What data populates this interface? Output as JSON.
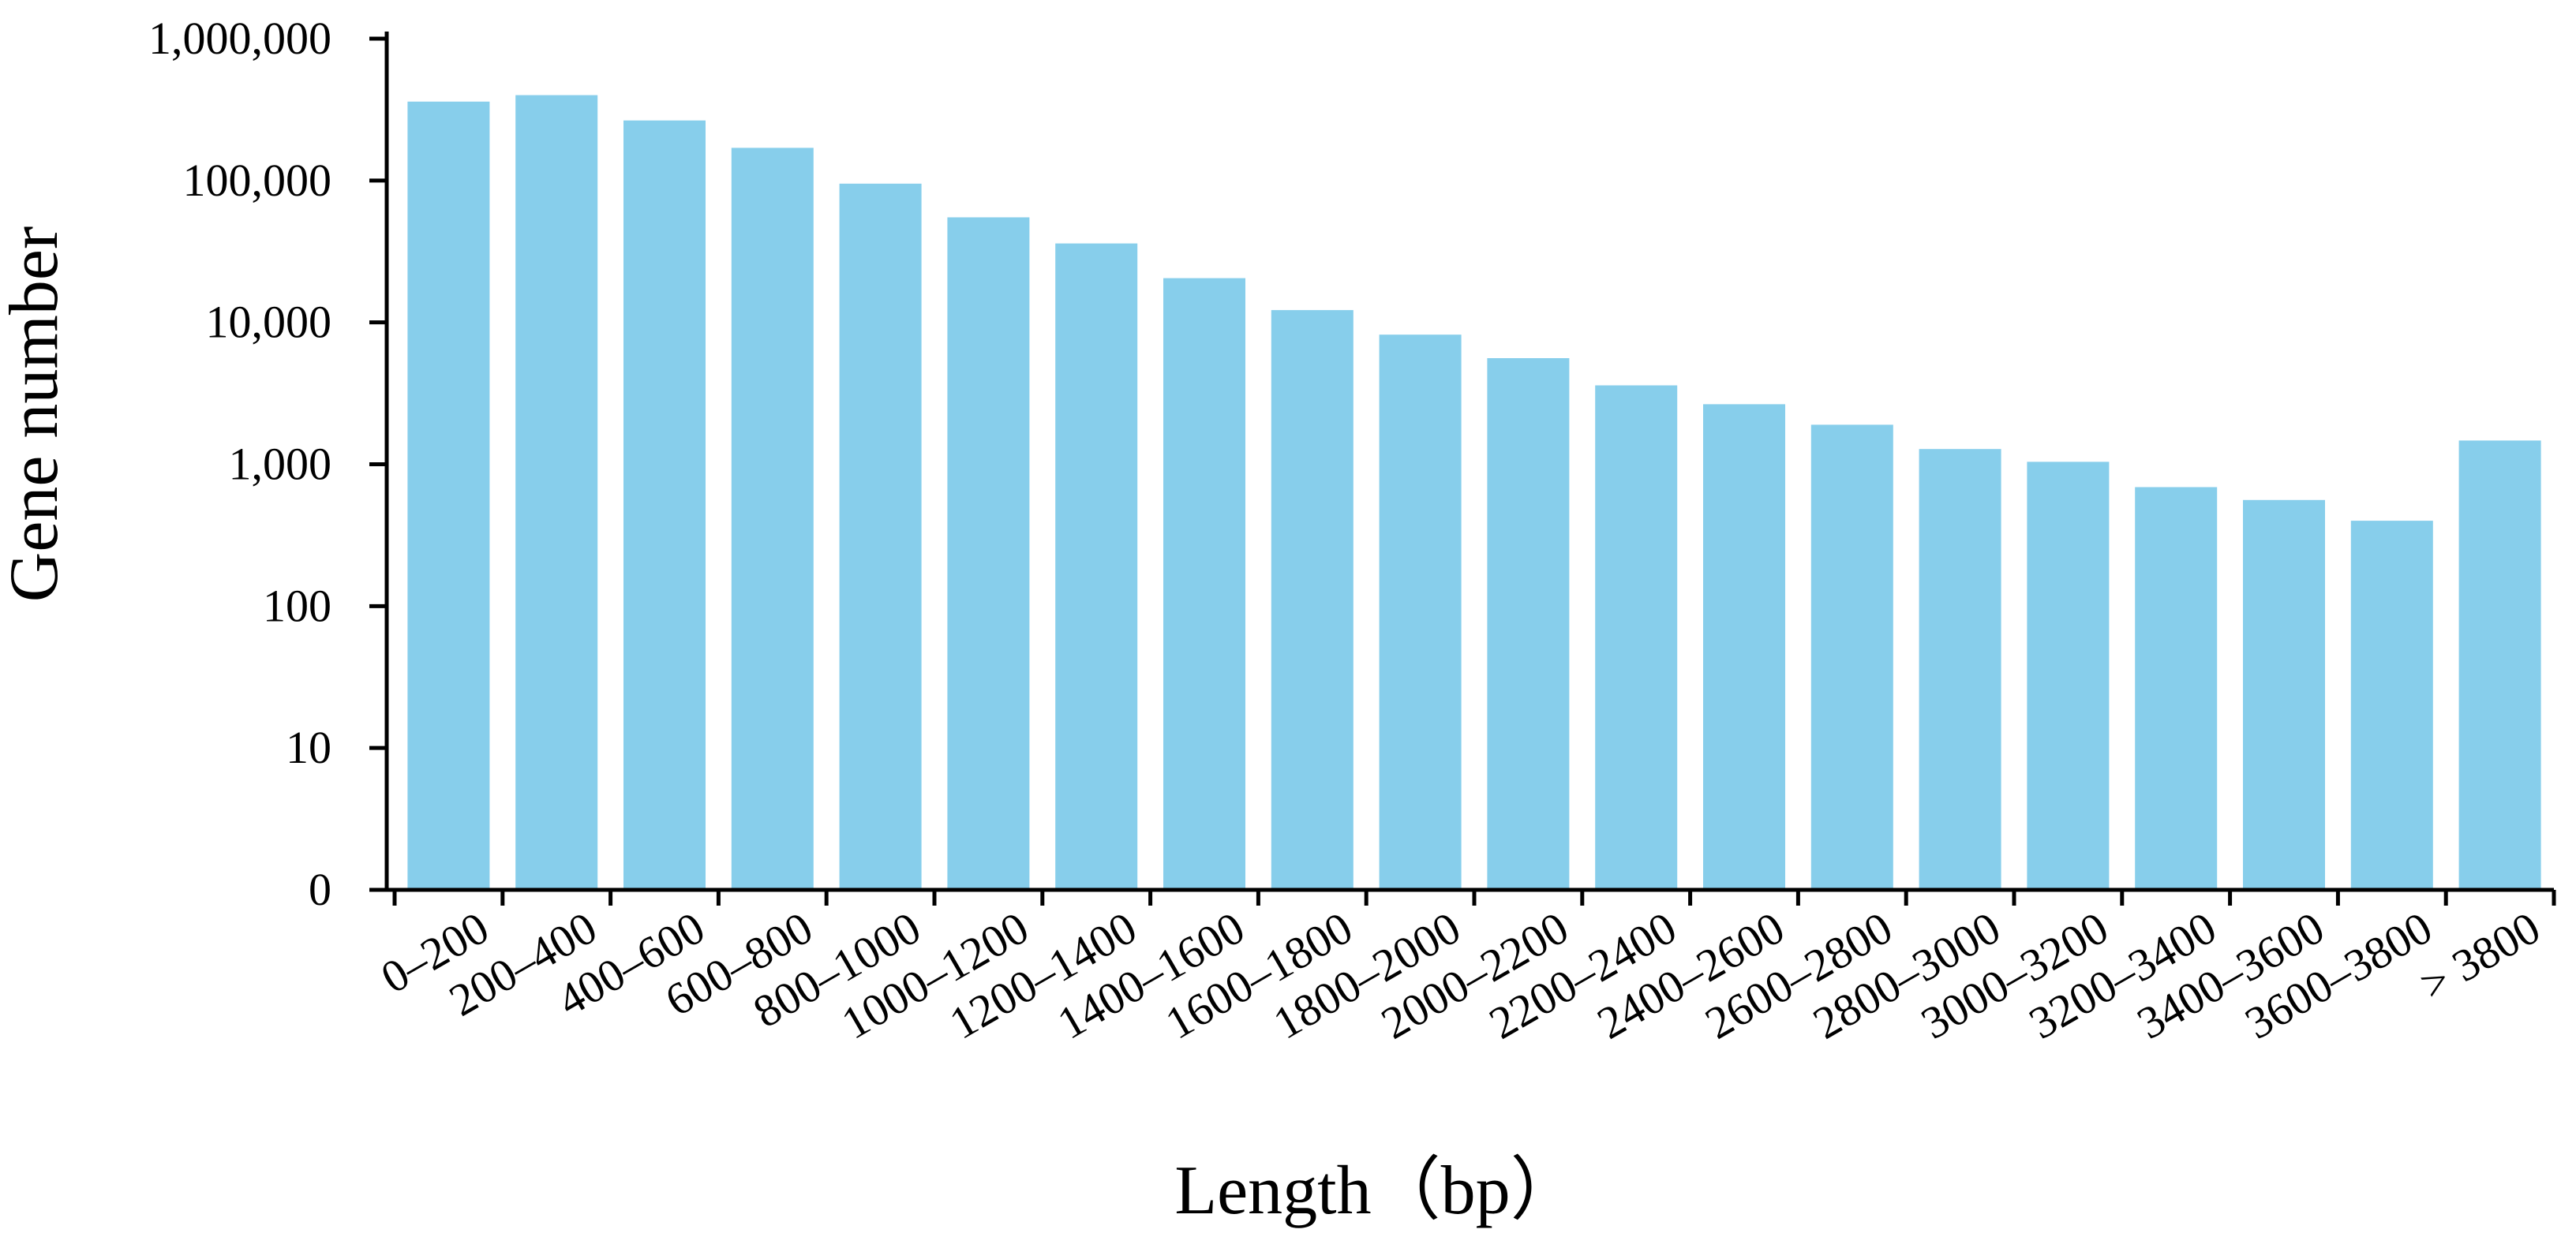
{
  "chart_data": {
    "type": "bar",
    "xlabel": "Length（bp）",
    "ylabel": "Gene number",
    "yscale": "log",
    "ylim": [
      1,
      1000000
    ],
    "grid": false,
    "legend": "none",
    "bar_color": "#87ceeb",
    "axis_color": "#000000",
    "y_ticks": [
      {
        "value": 1,
        "label": "0"
      },
      {
        "value": 10,
        "label": "10"
      },
      {
        "value": 100,
        "label": "100"
      },
      {
        "value": 1000,
        "label": "1,000"
      },
      {
        "value": 10000,
        "label": "10,000"
      },
      {
        "value": 100000,
        "label": "100,000"
      },
      {
        "value": 1000000,
        "label": "1,000,000"
      }
    ],
    "categories": [
      "0–200",
      "200–400",
      "400–600",
      "600–800",
      "800–1000",
      "1000–1200",
      "1200–1400",
      "1400–1600",
      "1600–1800",
      "1800–2000",
      "2000–2200",
      "2200–2400",
      "2400–2600",
      "2600–2800",
      "2800–3000",
      "3000–3200",
      "3200–3400",
      "3400–3600",
      "3600–3800",
      "> 3800"
    ],
    "values": [
      360000,
      400000,
      265000,
      170000,
      95000,
      55000,
      36000,
      20500,
      12200,
      8200,
      5600,
      3600,
      2650,
      1900,
      1280,
      1040,
      690,
      560,
      400,
      1470
    ]
  }
}
